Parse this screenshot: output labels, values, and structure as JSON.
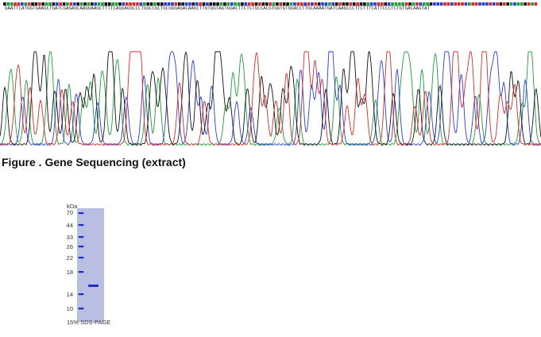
{
  "sequencing": {
    "sequence": "GAATTCATGGTGAAGCTGATCGAGAGCAAGGAAGCTTTTCAGGAGGCCCTGGCCGCTGCGGGAGACAAGCTTGTGGTAGTGGACTTCTCTGCCACGTGGTGTGGACCTTGCAAAATGATCAAGCCCTTCTTTCATTCCCTCTGTGACAAGTAT",
    "base_colors": {
      "A": "#1f9d3a",
      "C": "#2a3fd6",
      "G": "#111111",
      "T": "#d62b2b"
    },
    "caption": "Figure . Gene Sequencing (extract)"
  },
  "gel": {
    "unit": "kDa",
    "markers": [
      "70",
      "44",
      "33",
      "26",
      "22",
      "18",
      "14",
      "10"
    ],
    "caption": "15% SDS-PAGE",
    "background_color": "#b9bfe2",
    "band_color": "#1a2fc7"
  }
}
